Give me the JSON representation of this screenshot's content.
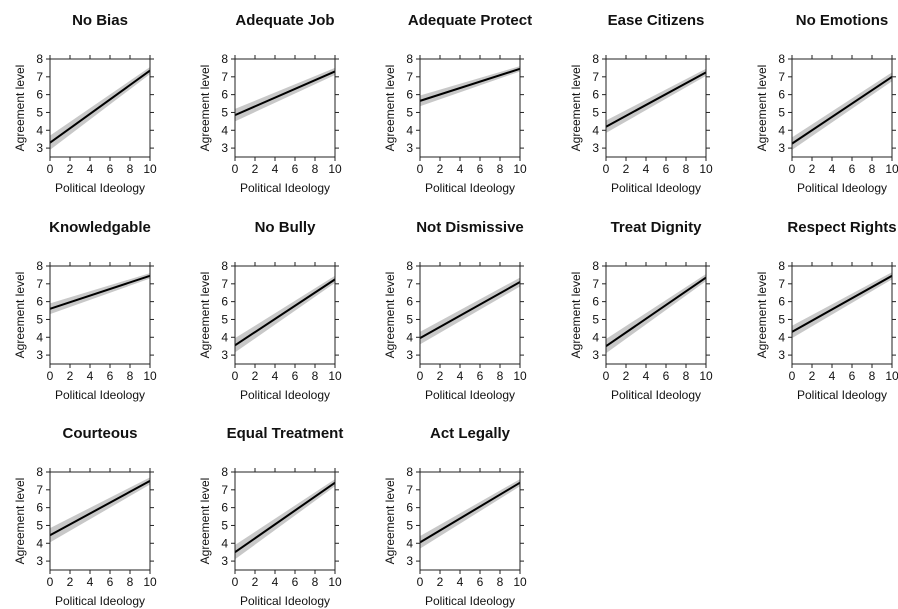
{
  "chart_data": [
    {
      "type": "line",
      "title": "No Bias",
      "xlabel": "Political Ideology",
      "ylabel": "Agreement level",
      "xlim": [
        0,
        10
      ],
      "ylim": [
        2.5,
        8
      ],
      "xticks": [
        0,
        2,
        4,
        6,
        8,
        10
      ],
      "yticks": [
        3,
        4,
        5,
        6,
        7,
        8
      ],
      "x": [
        0,
        10
      ],
      "y": [
        3.3,
        7.35
      ],
      "ci_lower": [
        2.9,
        7.15
      ],
      "ci_upper": [
        3.7,
        7.55
      ]
    },
    {
      "type": "line",
      "title": "Adequate Job",
      "xlabel": "Political Ideology",
      "ylabel": "Agreement level",
      "xlim": [
        0,
        10
      ],
      "ylim": [
        2.5,
        8
      ],
      "xticks": [
        0,
        2,
        4,
        6,
        8,
        10
      ],
      "yticks": [
        3,
        4,
        5,
        6,
        7,
        8
      ],
      "x": [
        0,
        10
      ],
      "y": [
        4.85,
        7.3
      ],
      "ci_lower": [
        4.5,
        7.1
      ],
      "ci_upper": [
        5.2,
        7.5
      ]
    },
    {
      "type": "line",
      "title": "Adequate Protect",
      "xlabel": "Political Ideology",
      "ylabel": "Agreement level",
      "xlim": [
        0,
        10
      ],
      "ylim": [
        2.5,
        8
      ],
      "xticks": [
        0,
        2,
        4,
        6,
        8,
        10
      ],
      "yticks": [
        3,
        4,
        5,
        6,
        7,
        8
      ],
      "x": [
        0,
        10
      ],
      "y": [
        5.65,
        7.45
      ],
      "ci_lower": [
        5.35,
        7.3
      ],
      "ci_upper": [
        5.95,
        7.6
      ]
    },
    {
      "type": "line",
      "title": "Ease Citizens",
      "xlabel": "Political Ideology",
      "ylabel": "Agreement level",
      "xlim": [
        0,
        10
      ],
      "ylim": [
        2.5,
        8
      ],
      "xticks": [
        0,
        2,
        4,
        6,
        8,
        10
      ],
      "yticks": [
        3,
        4,
        5,
        6,
        7,
        8
      ],
      "x": [
        0,
        10
      ],
      "y": [
        4.2,
        7.25
      ],
      "ci_lower": [
        3.85,
        7.05
      ],
      "ci_upper": [
        4.55,
        7.45
      ]
    },
    {
      "type": "line",
      "title": "No Emotions",
      "xlabel": "Political Ideology",
      "ylabel": "Agreement level",
      "xlim": [
        0,
        10
      ],
      "ylim": [
        2.5,
        8
      ],
      "xticks": [
        0,
        2,
        4,
        6,
        8,
        10
      ],
      "yticks": [
        3,
        4,
        5,
        6,
        7,
        8
      ],
      "x": [
        0,
        10
      ],
      "y": [
        3.25,
        7.0
      ],
      "ci_lower": [
        2.9,
        6.75
      ],
      "ci_upper": [
        3.6,
        7.25
      ]
    },
    {
      "type": "line",
      "title": "Knowledgable",
      "xlabel": "Political Ideology",
      "ylabel": "Agreement level",
      "xlim": [
        0,
        10
      ],
      "ylim": [
        2.5,
        8
      ],
      "xticks": [
        0,
        2,
        4,
        6,
        8,
        10
      ],
      "yticks": [
        3,
        4,
        5,
        6,
        7,
        8
      ],
      "x": [
        0,
        10
      ],
      "y": [
        5.6,
        7.45
      ],
      "ci_lower": [
        5.3,
        7.3
      ],
      "ci_upper": [
        5.9,
        7.6
      ]
    },
    {
      "type": "line",
      "title": "No Bully",
      "xlabel": "Political Ideology",
      "ylabel": "Agreement level",
      "xlim": [
        0,
        10
      ],
      "ylim": [
        2.5,
        8
      ],
      "xticks": [
        0,
        2,
        4,
        6,
        8,
        10
      ],
      "yticks": [
        3,
        4,
        5,
        6,
        7,
        8
      ],
      "x": [
        0,
        10
      ],
      "y": [
        3.55,
        7.25
      ],
      "ci_lower": [
        3.15,
        7.05
      ],
      "ci_upper": [
        3.95,
        7.45
      ]
    },
    {
      "type": "line",
      "title": "Not Dismissive",
      "xlabel": "Political Ideology",
      "ylabel": "Agreement level",
      "xlim": [
        0,
        10
      ],
      "ylim": [
        2.5,
        8
      ],
      "xticks": [
        0,
        2,
        4,
        6,
        8,
        10
      ],
      "yticks": [
        3,
        4,
        5,
        6,
        7,
        8
      ],
      "x": [
        0,
        10
      ],
      "y": [
        3.95,
        7.1
      ],
      "ci_lower": [
        3.6,
        6.85
      ],
      "ci_upper": [
        4.3,
        7.35
      ]
    },
    {
      "type": "line",
      "title": "Treat Dignity",
      "xlabel": "Political Ideology",
      "ylabel": "Agreement level",
      "xlim": [
        0,
        10
      ],
      "ylim": [
        2.5,
        8
      ],
      "xticks": [
        0,
        2,
        4,
        6,
        8,
        10
      ],
      "yticks": [
        3,
        4,
        5,
        6,
        7,
        8
      ],
      "x": [
        0,
        10
      ],
      "y": [
        3.5,
        7.35
      ],
      "ci_lower": [
        3.1,
        7.15
      ],
      "ci_upper": [
        3.9,
        7.55
      ]
    },
    {
      "type": "line",
      "title": "Respect Rights",
      "xlabel": "Political Ideology",
      "ylabel": "Agreement level",
      "xlim": [
        0,
        10
      ],
      "ylim": [
        2.5,
        8
      ],
      "xticks": [
        0,
        2,
        4,
        6,
        8,
        10
      ],
      "yticks": [
        3,
        4,
        5,
        6,
        7,
        8
      ],
      "x": [
        0,
        10
      ],
      "y": [
        4.3,
        7.45
      ],
      "ci_lower": [
        3.95,
        7.25
      ],
      "ci_upper": [
        4.65,
        7.65
      ]
    },
    {
      "type": "line",
      "title": "Courteous",
      "xlabel": "Political Ideology",
      "ylabel": "Agreement level",
      "xlim": [
        0,
        10
      ],
      "ylim": [
        2.5,
        8
      ],
      "xticks": [
        0,
        2,
        4,
        6,
        8,
        10
      ],
      "yticks": [
        3,
        4,
        5,
        6,
        7,
        8
      ],
      "x": [
        0,
        10
      ],
      "y": [
        4.45,
        7.5
      ],
      "ci_lower": [
        4.05,
        7.3
      ],
      "ci_upper": [
        4.85,
        7.7
      ]
    },
    {
      "type": "line",
      "title": "Equal Treatment",
      "xlabel": "Political Ideology",
      "ylabel": "Agreement level",
      "xlim": [
        0,
        10
      ],
      "ylim": [
        2.5,
        8
      ],
      "xticks": [
        0,
        2,
        4,
        6,
        8,
        10
      ],
      "yticks": [
        3,
        4,
        5,
        6,
        7,
        8
      ],
      "x": [
        0,
        10
      ],
      "y": [
        3.5,
        7.4
      ],
      "ci_lower": [
        3.1,
        7.2
      ],
      "ci_upper": [
        3.9,
        7.6
      ]
    },
    {
      "type": "line",
      "title": "Act Legally",
      "xlabel": "Political Ideology",
      "ylabel": "Agreement level",
      "xlim": [
        0,
        10
      ],
      "ylim": [
        2.5,
        8
      ],
      "xticks": [
        0,
        2,
        4,
        6,
        8,
        10
      ],
      "yticks": [
        3,
        4,
        5,
        6,
        7,
        8
      ],
      "x": [
        0,
        10
      ],
      "y": [
        4.05,
        7.4
      ],
      "ci_lower": [
        3.7,
        7.2
      ],
      "ci_upper": [
        4.4,
        7.6
      ]
    }
  ]
}
